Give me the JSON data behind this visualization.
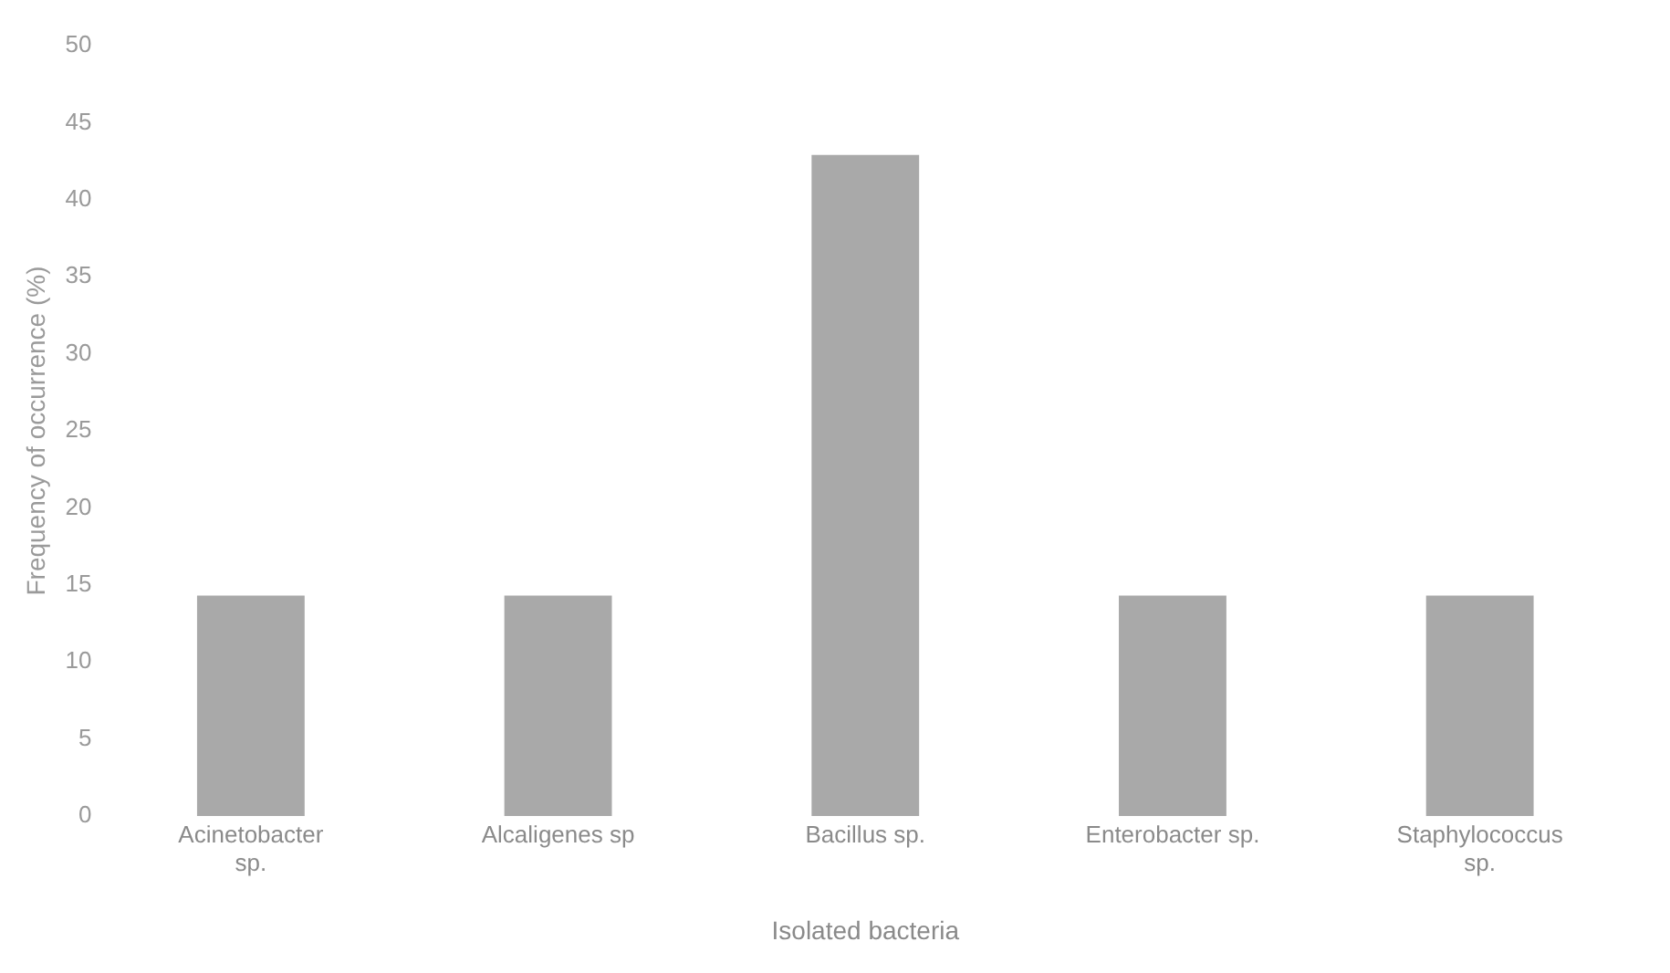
{
  "chart_data": {
    "type": "bar",
    "xlabel": "Isolated bacteria",
    "ylabel": "Frequency of occurrence (%)",
    "categories": [
      "Acinetobacter sp.",
      "Alcaligenes sp",
      "Bacillus sp.",
      "Enterobacter sp.",
      "Staphylococcus sp."
    ],
    "values": [
      14.3,
      14.3,
      42.9,
      14.3,
      14.3
    ],
    "color": "#a9a9a9",
    "ylim": [
      0,
      50
    ],
    "yticks": [
      0,
      5,
      10,
      15,
      20,
      25,
      30,
      35,
      40,
      45,
      50
    ],
    "grid": false,
    "legend": false
  }
}
